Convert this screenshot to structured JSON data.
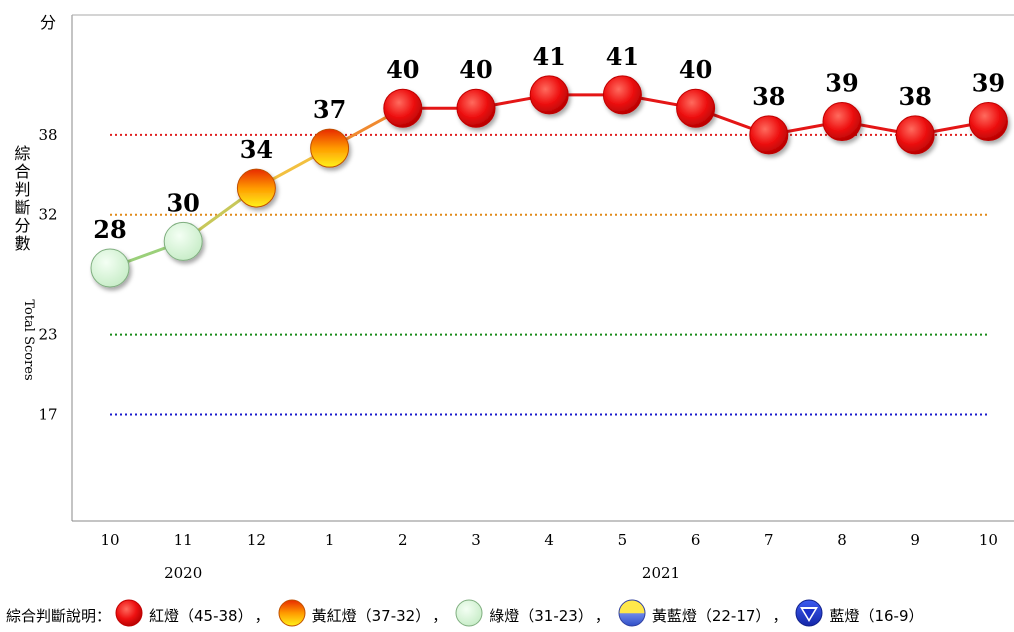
{
  "chart_data": {
    "type": "line",
    "y_unit_label": "分",
    "ylabel_zh": "綜合判斷分數",
    "ylabel_en": "Total Scores",
    "y_ticks": [
      17,
      23,
      32,
      38
    ],
    "ylim": [
      9,
      47
    ],
    "x_categories": [
      "10",
      "11",
      "12",
      "1",
      "2",
      "3",
      "4",
      "5",
      "6",
      "7",
      "8",
      "9",
      "10"
    ],
    "year_labels": [
      "2020",
      "2021"
    ],
    "values": [
      28,
      30,
      34,
      37,
      40,
      40,
      41,
      41,
      40,
      38,
      39,
      38,
      39
    ],
    "signals": [
      "green",
      "green",
      "yellow-red",
      "yellow-red",
      "red",
      "red",
      "red",
      "red",
      "red",
      "red",
      "red",
      "red",
      "red"
    ],
    "threshold_lines": [
      {
        "value": 38,
        "color": "#e02020"
      },
      {
        "value": 32,
        "color": "#e08a1a"
      },
      {
        "value": 23,
        "color": "#1a8a1a"
      },
      {
        "value": 17,
        "color": "#1a1acc"
      }
    ],
    "grid": false
  },
  "legend": {
    "title": "綜合判斷說明：",
    "items": [
      {
        "key": "red",
        "label": "紅燈（45-38）",
        "sep": "，"
      },
      {
        "key": "yellow-red",
        "label": "黃紅燈（37-32）",
        "sep": "，"
      },
      {
        "key": "green",
        "label": "綠燈（31-23）",
        "sep": "，"
      },
      {
        "key": "yellow-blue",
        "label": "黃藍燈（22-17）",
        "sep": "，"
      },
      {
        "key": "blue",
        "label": "藍燈（16-9）",
        "sep": ""
      }
    ]
  },
  "colors": {
    "red": "#ee1111",
    "yellow-red": "#ff8800",
    "green": "#d4f5d4",
    "yellow-blue": "#5a78e0",
    "blue": "#1a30c8"
  }
}
